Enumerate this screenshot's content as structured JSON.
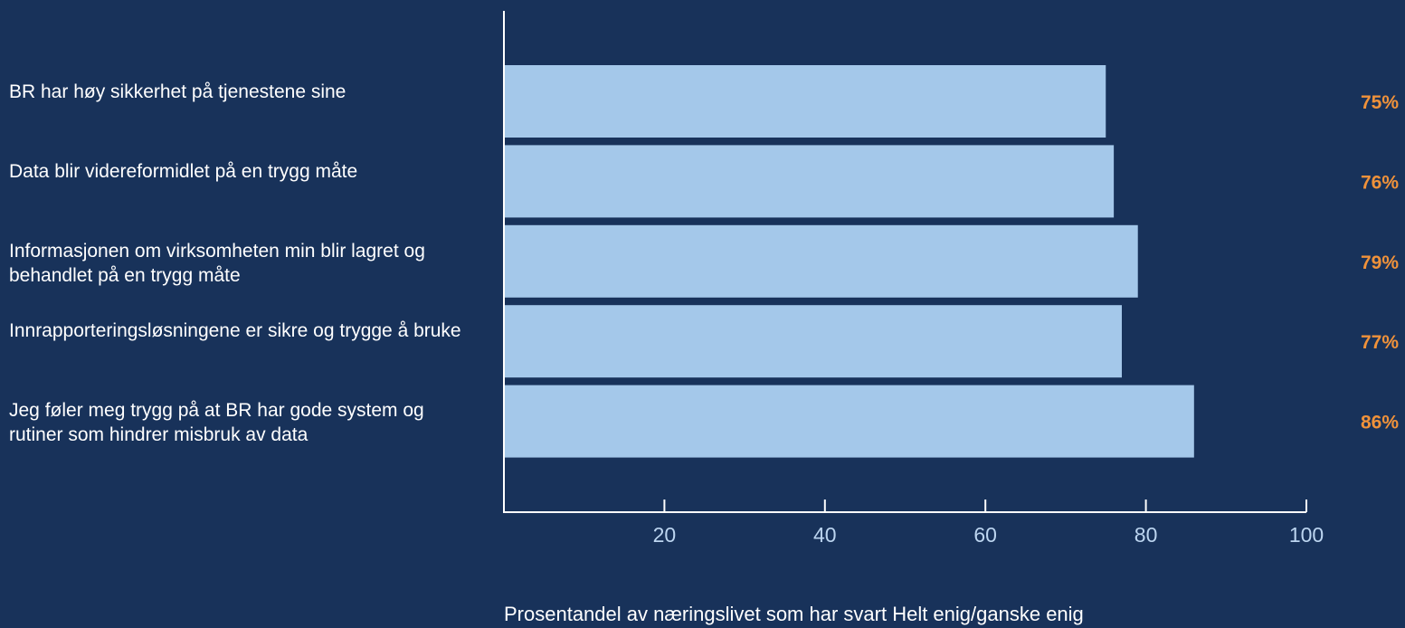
{
  "chart_data": {
    "type": "bar",
    "orientation": "horizontal",
    "categories": [
      "BR har høy sikkerhet på tjenestene sine",
      "Data blir videreformidlet på en trygg måte",
      "Informasjonen om virksomheten min blir lagret og behandlet på en trygg måte",
      "Innrapporteringsløsningene er sikre og trygge å bruke",
      "Jeg føler meg trygg på at BR har gode system og rutiner som hindrer misbruk av data"
    ],
    "values": [
      75,
      76,
      79,
      77,
      86
    ],
    "value_labels": [
      "75%",
      "76%",
      "79%",
      "77%",
      "86%"
    ],
    "xlabel": "Prosentandel av næringslivet som har svart Helt enig/ganske enig",
    "ylabel": "",
    "xlim": [
      0,
      100
    ],
    "xticks": [
      20,
      40,
      60,
      80,
      100
    ],
    "grid": false,
    "colors": {
      "background": "#18325a",
      "bar": "#a4c8ea",
      "value_label": "#f0923a",
      "axis": "#ffffff",
      "tick_label": "#bcd5f0",
      "text": "#ffffff"
    }
  }
}
